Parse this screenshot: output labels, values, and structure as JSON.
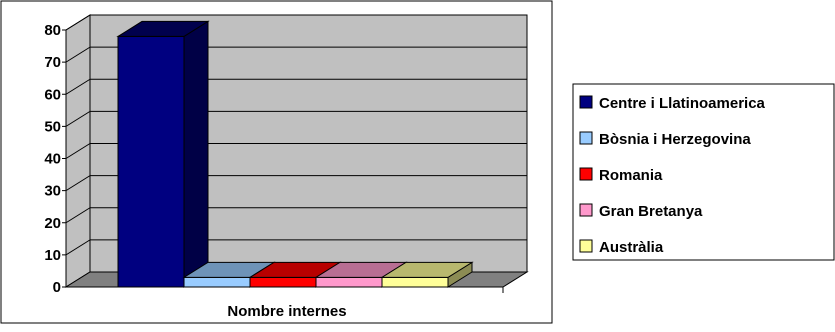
{
  "chart_data": {
    "type": "bar",
    "xlabel": "Nombre internes",
    "categories": [
      "Nombre internes"
    ],
    "series": [
      {
        "name": "Centre i Llatinoamerica",
        "values": [
          78
        ],
        "color": "#000080"
      },
      {
        "name": "Bòsnia i Herzegovina",
        "values": [
          3
        ],
        "color": "#99CCFF"
      },
      {
        "name": "Romania",
        "values": [
          3
        ],
        "color": "#FF0000"
      },
      {
        "name": "Gran Bretanya",
        "values": [
          3
        ],
        "color": "#FF99CC"
      },
      {
        "name": "Austràlia",
        "values": [
          3
        ],
        "color": "#FFFF99"
      }
    ],
    "ylim": [
      0,
      80
    ],
    "yticks": [
      0,
      10,
      20,
      30,
      40,
      50,
      60,
      70,
      80
    ],
    "grid": true,
    "legend_position": "right",
    "plot_wall_color": "#C0C0C0",
    "plot_floor_color": "#808080"
  }
}
